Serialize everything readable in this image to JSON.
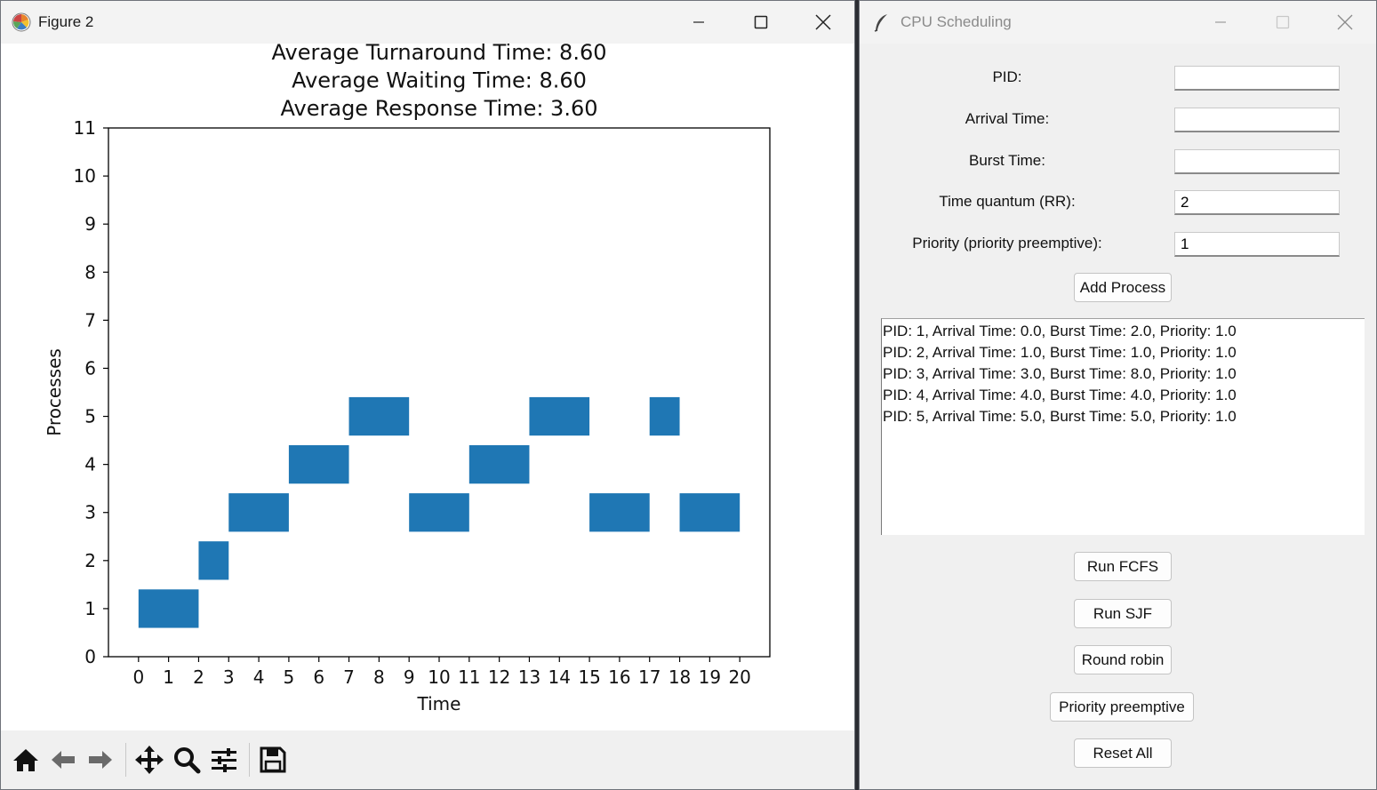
{
  "figure_window": {
    "title": "Figure 2",
    "buttons": [
      "minimize",
      "maximize",
      "close"
    ],
    "toolbar_icons": [
      "home-icon",
      "back-icon",
      "forward-icon",
      "pan-icon",
      "zoom-icon",
      "configure-subplots-icon",
      "save-icon"
    ]
  },
  "chart_data": {
    "type": "gantt",
    "title_lines": [
      "Average Turnaround Time: 8.60",
      "Average Waiting Time: 8.60",
      "Average Response Time: 3.60"
    ],
    "xlabel": "Time",
    "ylabel": "Processes",
    "xlim": [
      -1,
      21
    ],
    "ylim": [
      0,
      11
    ],
    "xticks": [
      0,
      1,
      2,
      3,
      4,
      5,
      6,
      7,
      8,
      9,
      10,
      11,
      12,
      13,
      14,
      15,
      16,
      17,
      18,
      19,
      20
    ],
    "yticks": [
      0,
      1,
      2,
      3,
      4,
      5,
      6,
      7,
      8,
      9,
      10,
      11
    ],
    "bar_height": 0.8,
    "color": "#1f77b4",
    "segments": [
      {
        "process": 1,
        "start": 0,
        "end": 2
      },
      {
        "process": 2,
        "start": 2,
        "end": 3
      },
      {
        "process": 3,
        "start": 3,
        "end": 5
      },
      {
        "process": 4,
        "start": 5,
        "end": 7
      },
      {
        "process": 5,
        "start": 7,
        "end": 9
      },
      {
        "process": 3,
        "start": 9,
        "end": 11
      },
      {
        "process": 4,
        "start": 11,
        "end": 13
      },
      {
        "process": 5,
        "start": 13,
        "end": 15
      },
      {
        "process": 3,
        "start": 15,
        "end": 17
      },
      {
        "process": 5,
        "start": 17,
        "end": 18
      },
      {
        "process": 3,
        "start": 18,
        "end": 20
      }
    ]
  },
  "tk_window": {
    "title": "CPU Scheduling",
    "fields": [
      {
        "label": "PID:",
        "value": ""
      },
      {
        "label": "Arrival Time:",
        "value": ""
      },
      {
        "label": "Burst Time:",
        "value": ""
      },
      {
        "label": "Time quantum (RR):",
        "value": "2"
      },
      {
        "label": "Priority (priority preemptive):",
        "value": "1"
      }
    ],
    "add_button": "Add Process",
    "process_list": [
      "PID: 1, Arrival Time: 0.0, Burst Time: 2.0, Priority: 1.0",
      "PID: 2, Arrival Time: 1.0, Burst Time: 1.0, Priority: 1.0",
      "PID: 3, Arrival Time: 3.0, Burst Time: 8.0, Priority: 1.0",
      "PID: 4, Arrival Time: 4.0, Burst Time: 4.0, Priority: 1.0",
      "PID: 5, Arrival Time: 5.0, Burst Time: 5.0, Priority: 1.0"
    ],
    "buttons": {
      "fcfs": "Run FCFS",
      "sjf": "Run SJF",
      "rr": "Round robin",
      "priority": "Priority preemptive",
      "reset": "Reset All"
    }
  }
}
